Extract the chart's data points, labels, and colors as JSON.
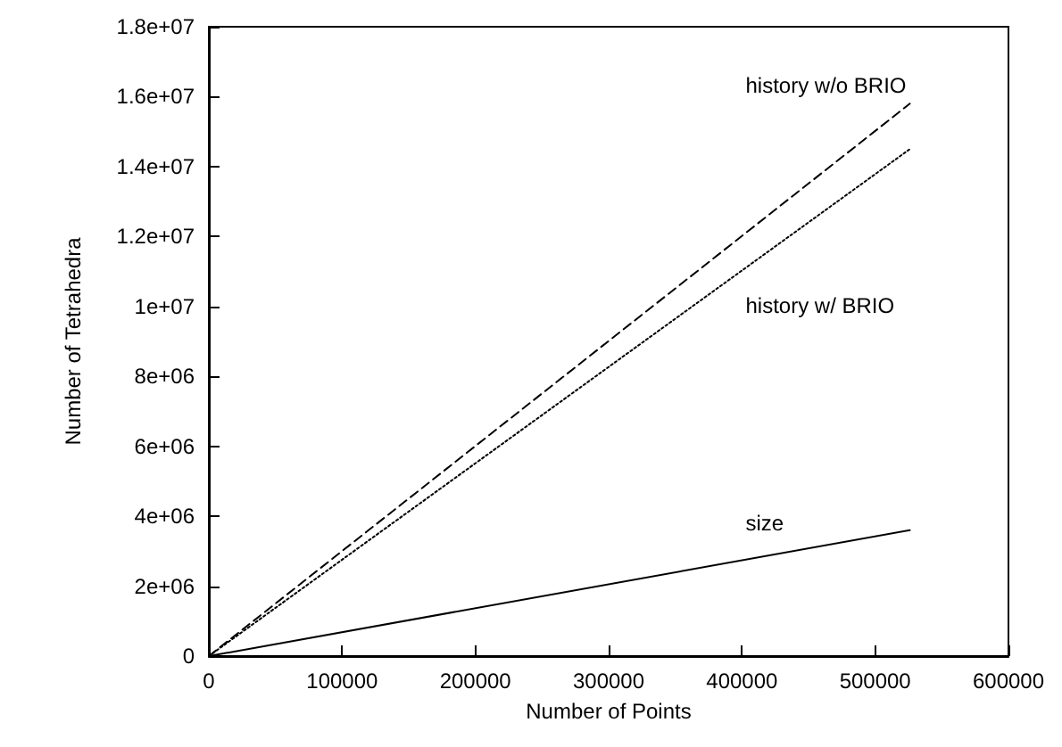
{
  "chart_data": {
    "type": "line",
    "xlabel": "Number of Points",
    "ylabel": "Number of Tetrahedra",
    "xlim": [
      0,
      600000
    ],
    "xticks": [
      0,
      100000,
      200000,
      300000,
      400000,
      500000,
      600000
    ],
    "ylim": [
      0,
      18000000
    ],
    "yticks": [
      {
        "value": 0,
        "label": "0"
      },
      {
        "value": 2000000,
        "label": "2e+06"
      },
      {
        "value": 4000000,
        "label": "4e+06"
      },
      {
        "value": 6000000,
        "label": "6e+06"
      },
      {
        "value": 8000000,
        "label": "8e+06"
      },
      {
        "value": 10000000,
        "label": "1e+07"
      },
      {
        "value": 12000000,
        "label": "1.2e+07"
      },
      {
        "value": 14000000,
        "label": "1.4e+07"
      },
      {
        "value": 16000000,
        "label": "1.6e+07"
      },
      {
        "value": 18000000,
        "label": "1.8e+07"
      }
    ],
    "grid": false,
    "legend": false,
    "marker": "none",
    "x": [
      0,
      526000
    ],
    "series": [
      {
        "name": "history w/o BRIO",
        "color": "#000000",
        "line_style": "dashed",
        "values": [
          0,
          15800000
        ]
      },
      {
        "name": "history w/ BRIO",
        "color": "#000000",
        "line_style": "dotted",
        "values": [
          0,
          14500000
        ]
      },
      {
        "name": "size",
        "color": "#000000",
        "line_style": "solid",
        "values": [
          0,
          3600000
        ]
      }
    ]
  }
}
